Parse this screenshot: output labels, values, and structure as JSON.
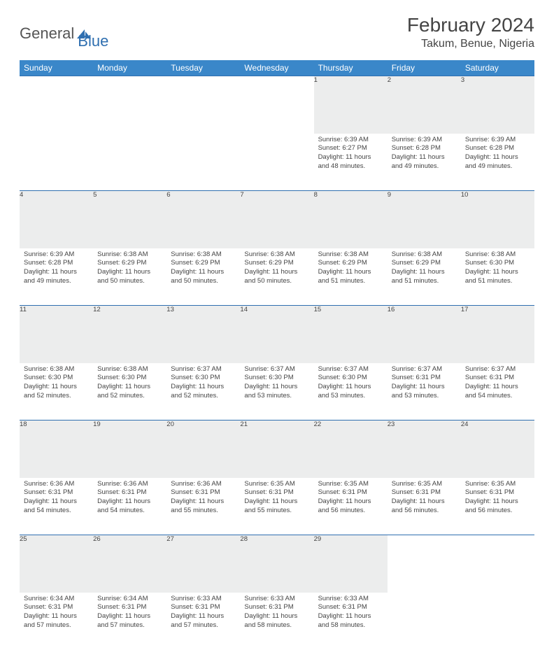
{
  "logo": {
    "word1": "General",
    "word2": "Blue"
  },
  "title": "February 2024",
  "location": "Takum, Benue, Nigeria",
  "colors": {
    "header_bg": "#3a87c9",
    "header_text": "#ffffff",
    "rule": "#2f6fb0",
    "daynum_bg": "#eceded",
    "text": "#444444",
    "logo_gray": "#555555",
    "logo_blue": "#2f6fb0",
    "page_bg": "#ffffff"
  },
  "typography": {
    "title_fontsize": 28,
    "location_fontsize": 16,
    "header_fontsize": 12,
    "daynum_fontsize": 11,
    "cell_fontsize": 9.5
  },
  "weekdays": [
    "Sunday",
    "Monday",
    "Tuesday",
    "Wednesday",
    "Thursday",
    "Friday",
    "Saturday"
  ],
  "weeks": [
    [
      null,
      null,
      null,
      null,
      {
        "n": "1",
        "sunrise": "Sunrise: 6:39 AM",
        "sunset": "Sunset: 6:27 PM",
        "daylight": "Daylight: 11 hours and 48 minutes."
      },
      {
        "n": "2",
        "sunrise": "Sunrise: 6:39 AM",
        "sunset": "Sunset: 6:28 PM",
        "daylight": "Daylight: 11 hours and 49 minutes."
      },
      {
        "n": "3",
        "sunrise": "Sunrise: 6:39 AM",
        "sunset": "Sunset: 6:28 PM",
        "daylight": "Daylight: 11 hours and 49 minutes."
      }
    ],
    [
      {
        "n": "4",
        "sunrise": "Sunrise: 6:39 AM",
        "sunset": "Sunset: 6:28 PM",
        "daylight": "Daylight: 11 hours and 49 minutes."
      },
      {
        "n": "5",
        "sunrise": "Sunrise: 6:38 AM",
        "sunset": "Sunset: 6:29 PM",
        "daylight": "Daylight: 11 hours and 50 minutes."
      },
      {
        "n": "6",
        "sunrise": "Sunrise: 6:38 AM",
        "sunset": "Sunset: 6:29 PM",
        "daylight": "Daylight: 11 hours and 50 minutes."
      },
      {
        "n": "7",
        "sunrise": "Sunrise: 6:38 AM",
        "sunset": "Sunset: 6:29 PM",
        "daylight": "Daylight: 11 hours and 50 minutes."
      },
      {
        "n": "8",
        "sunrise": "Sunrise: 6:38 AM",
        "sunset": "Sunset: 6:29 PM",
        "daylight": "Daylight: 11 hours and 51 minutes."
      },
      {
        "n": "9",
        "sunrise": "Sunrise: 6:38 AM",
        "sunset": "Sunset: 6:29 PM",
        "daylight": "Daylight: 11 hours and 51 minutes."
      },
      {
        "n": "10",
        "sunrise": "Sunrise: 6:38 AM",
        "sunset": "Sunset: 6:30 PM",
        "daylight": "Daylight: 11 hours and 51 minutes."
      }
    ],
    [
      {
        "n": "11",
        "sunrise": "Sunrise: 6:38 AM",
        "sunset": "Sunset: 6:30 PM",
        "daylight": "Daylight: 11 hours and 52 minutes."
      },
      {
        "n": "12",
        "sunrise": "Sunrise: 6:38 AM",
        "sunset": "Sunset: 6:30 PM",
        "daylight": "Daylight: 11 hours and 52 minutes."
      },
      {
        "n": "13",
        "sunrise": "Sunrise: 6:37 AM",
        "sunset": "Sunset: 6:30 PM",
        "daylight": "Daylight: 11 hours and 52 minutes."
      },
      {
        "n": "14",
        "sunrise": "Sunrise: 6:37 AM",
        "sunset": "Sunset: 6:30 PM",
        "daylight": "Daylight: 11 hours and 53 minutes."
      },
      {
        "n": "15",
        "sunrise": "Sunrise: 6:37 AM",
        "sunset": "Sunset: 6:30 PM",
        "daylight": "Daylight: 11 hours and 53 minutes."
      },
      {
        "n": "16",
        "sunrise": "Sunrise: 6:37 AM",
        "sunset": "Sunset: 6:31 PM",
        "daylight": "Daylight: 11 hours and 53 minutes."
      },
      {
        "n": "17",
        "sunrise": "Sunrise: 6:37 AM",
        "sunset": "Sunset: 6:31 PM",
        "daylight": "Daylight: 11 hours and 54 minutes."
      }
    ],
    [
      {
        "n": "18",
        "sunrise": "Sunrise: 6:36 AM",
        "sunset": "Sunset: 6:31 PM",
        "daylight": "Daylight: 11 hours and 54 minutes."
      },
      {
        "n": "19",
        "sunrise": "Sunrise: 6:36 AM",
        "sunset": "Sunset: 6:31 PM",
        "daylight": "Daylight: 11 hours and 54 minutes."
      },
      {
        "n": "20",
        "sunrise": "Sunrise: 6:36 AM",
        "sunset": "Sunset: 6:31 PM",
        "daylight": "Daylight: 11 hours and 55 minutes."
      },
      {
        "n": "21",
        "sunrise": "Sunrise: 6:35 AM",
        "sunset": "Sunset: 6:31 PM",
        "daylight": "Daylight: 11 hours and 55 minutes."
      },
      {
        "n": "22",
        "sunrise": "Sunrise: 6:35 AM",
        "sunset": "Sunset: 6:31 PM",
        "daylight": "Daylight: 11 hours and 56 minutes."
      },
      {
        "n": "23",
        "sunrise": "Sunrise: 6:35 AM",
        "sunset": "Sunset: 6:31 PM",
        "daylight": "Daylight: 11 hours and 56 minutes."
      },
      {
        "n": "24",
        "sunrise": "Sunrise: 6:35 AM",
        "sunset": "Sunset: 6:31 PM",
        "daylight": "Daylight: 11 hours and 56 minutes."
      }
    ],
    [
      {
        "n": "25",
        "sunrise": "Sunrise: 6:34 AM",
        "sunset": "Sunset: 6:31 PM",
        "daylight": "Daylight: 11 hours and 57 minutes."
      },
      {
        "n": "26",
        "sunrise": "Sunrise: 6:34 AM",
        "sunset": "Sunset: 6:31 PM",
        "daylight": "Daylight: 11 hours and 57 minutes."
      },
      {
        "n": "27",
        "sunrise": "Sunrise: 6:33 AM",
        "sunset": "Sunset: 6:31 PM",
        "daylight": "Daylight: 11 hours and 57 minutes."
      },
      {
        "n": "28",
        "sunrise": "Sunrise: 6:33 AM",
        "sunset": "Sunset: 6:31 PM",
        "daylight": "Daylight: 11 hours and 58 minutes."
      },
      {
        "n": "29",
        "sunrise": "Sunrise: 6:33 AM",
        "sunset": "Sunset: 6:31 PM",
        "daylight": "Daylight: 11 hours and 58 minutes."
      },
      null,
      null
    ]
  ]
}
